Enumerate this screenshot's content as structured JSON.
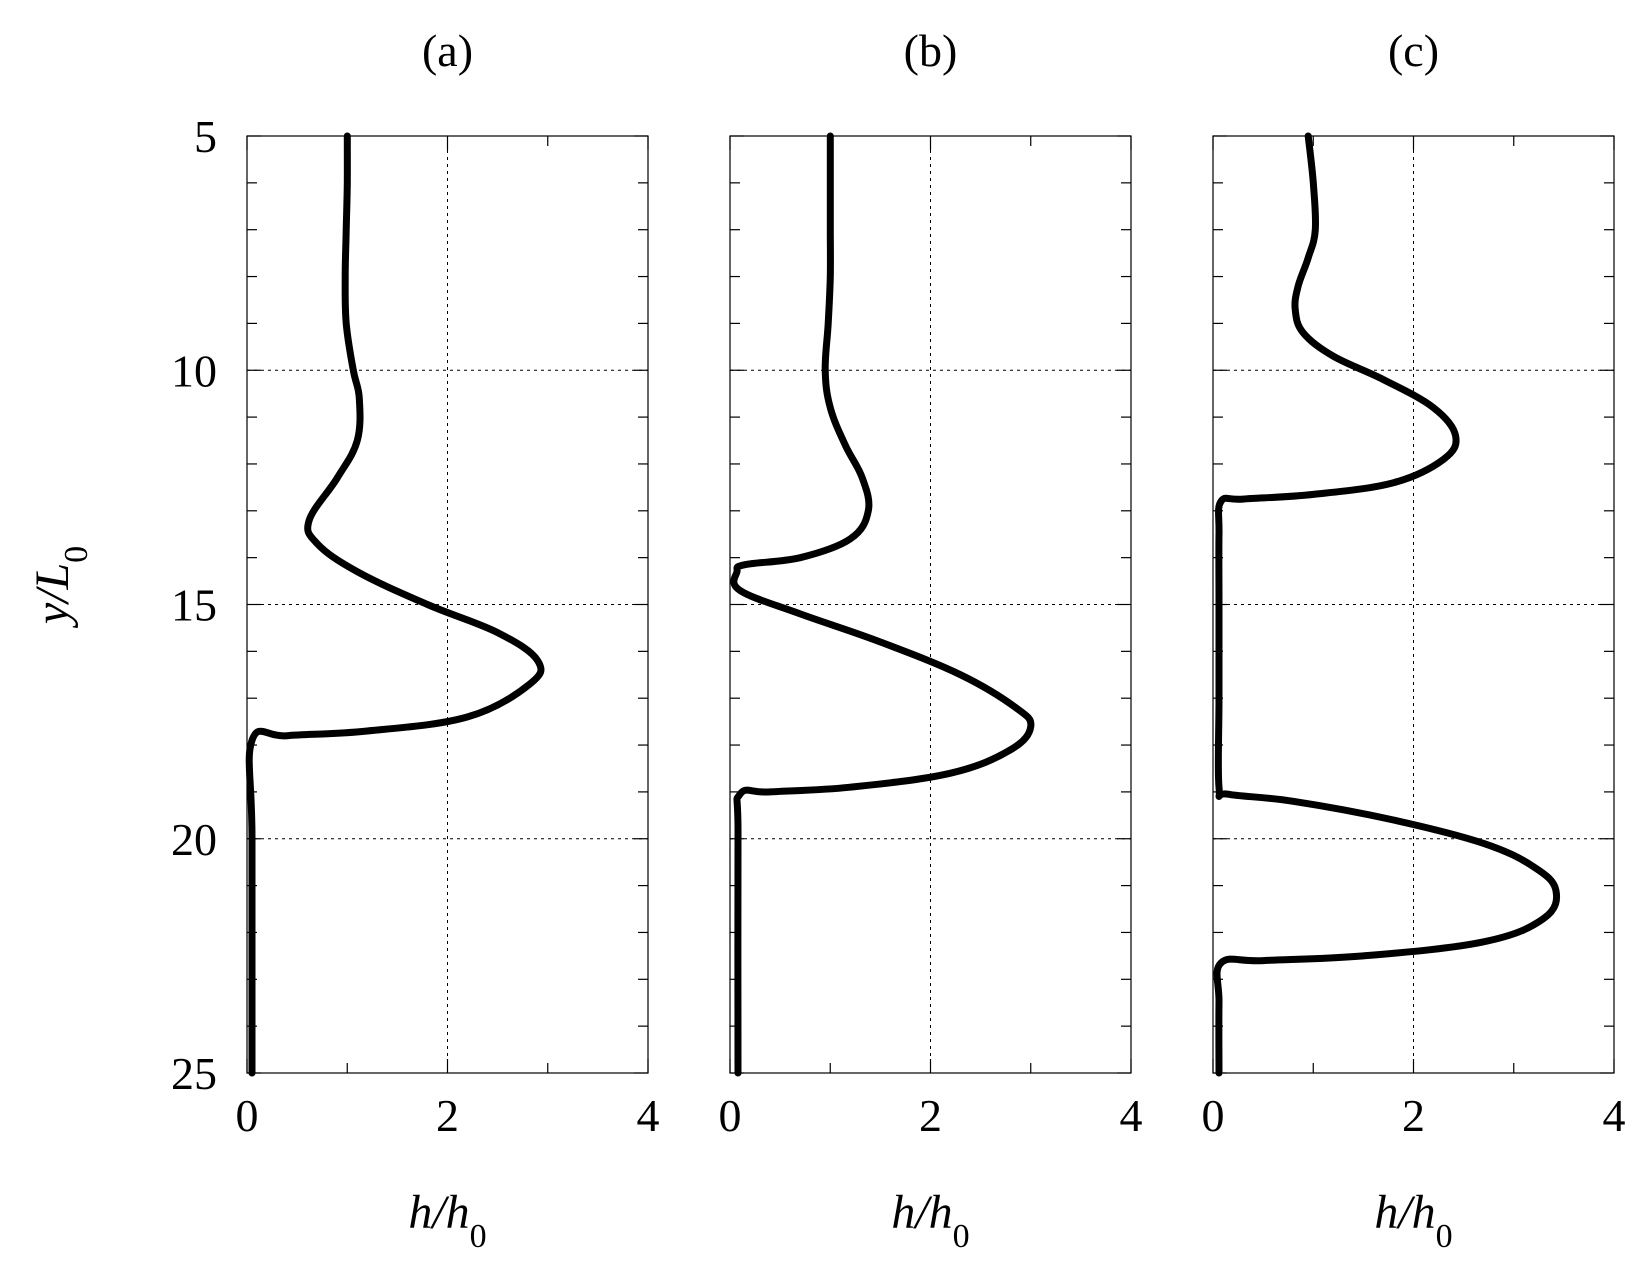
{
  "figure": {
    "y_axis_title_main": "y/L",
    "y_axis_title_sub": "0",
    "x_axis_title_main": "h/h",
    "x_axis_title_sub": "0"
  },
  "chart_data": [
    {
      "type": "line",
      "panel_label": "(a)",
      "xlim": [
        0,
        4
      ],
      "ylim": [
        5,
        25
      ],
      "y_inverted": true,
      "xticks": [
        0,
        2,
        4
      ],
      "yticks": [
        5,
        10,
        15,
        20,
        25
      ],
      "grid": true,
      "series": [
        {
          "points": [
            [
              1.0,
              5
            ],
            [
              1.0,
              6
            ],
            [
              0.99,
              7
            ],
            [
              0.98,
              8
            ],
            [
              0.99,
              9
            ],
            [
              1.06,
              10
            ],
            [
              1.12,
              10.6
            ],
            [
              1.1,
              11.5
            ],
            [
              0.9,
              12.3
            ],
            [
              0.62,
              13.2
            ],
            [
              0.7,
              13.7
            ],
            [
              1.1,
              14.3
            ],
            [
              1.8,
              15.0
            ],
            [
              2.5,
              15.6
            ],
            [
              2.9,
              16.2
            ],
            [
              2.82,
              16.7
            ],
            [
              2.2,
              17.4
            ],
            [
              1.2,
              17.7
            ],
            [
              0.4,
              17.8
            ],
            [
              0.05,
              17.9
            ],
            [
              0.05,
              20
            ],
            [
              0.05,
              25
            ]
          ]
        }
      ]
    },
    {
      "type": "line",
      "panel_label": "(b)",
      "xlim": [
        0,
        4
      ],
      "ylim": [
        5,
        25
      ],
      "y_inverted": true,
      "xticks": [
        0,
        2,
        4
      ],
      "yticks": [
        5,
        10,
        15,
        20,
        25
      ],
      "grid": true,
      "series": [
        {
          "points": [
            [
              1.0,
              5
            ],
            [
              1.0,
              6
            ],
            [
              1.0,
              7
            ],
            [
              1.0,
              8
            ],
            [
              0.98,
              9
            ],
            [
              0.95,
              10
            ],
            [
              1.0,
              10.8
            ],
            [
              1.15,
              11.6
            ],
            [
              1.32,
              12.3
            ],
            [
              1.38,
              13.0
            ],
            [
              1.2,
              13.6
            ],
            [
              0.7,
              14.0
            ],
            [
              0.15,
              14.15
            ],
            [
              0.07,
              14.3
            ],
            [
              0.1,
              14.7
            ],
            [
              0.7,
              15.2
            ],
            [
              1.5,
              15.8
            ],
            [
              2.3,
              16.5
            ],
            [
              2.85,
              17.2
            ],
            [
              3.0,
              17.6
            ],
            [
              2.8,
              18.1
            ],
            [
              2.2,
              18.6
            ],
            [
              1.2,
              18.9
            ],
            [
              0.4,
              19.0
            ],
            [
              0.1,
              19.05
            ],
            [
              0.08,
              20
            ],
            [
              0.08,
              25
            ]
          ]
        }
      ]
    },
    {
      "type": "line",
      "panel_label": "(c)",
      "xlim": [
        0,
        4
      ],
      "ylim": [
        5,
        25
      ],
      "y_inverted": true,
      "xticks": [
        0,
        2,
        4
      ],
      "yticks": [
        5,
        10,
        15,
        20,
        25
      ],
      "grid": true,
      "series": [
        {
          "points": [
            [
              0.95,
              5
            ],
            [
              1.0,
              6
            ],
            [
              1.02,
              7
            ],
            [
              0.95,
              7.6
            ],
            [
              0.85,
              8.2
            ],
            [
              0.82,
              8.7
            ],
            [
              0.9,
              9.2
            ],
            [
              1.2,
              9.7
            ],
            [
              1.7,
              10.2
            ],
            [
              2.2,
              10.8
            ],
            [
              2.42,
              11.4
            ],
            [
              2.3,
              11.9
            ],
            [
              1.8,
              12.4
            ],
            [
              1.0,
              12.65
            ],
            [
              0.3,
              12.75
            ],
            [
              0.08,
              12.8
            ],
            [
              0.06,
              13.5
            ],
            [
              0.06,
              15
            ],
            [
              0.06,
              17
            ],
            [
              0.06,
              18.9
            ],
            [
              0.15,
              19.05
            ],
            [
              0.8,
              19.2
            ],
            [
              1.8,
              19.6
            ],
            [
              2.7,
              20.1
            ],
            [
              3.2,
              20.6
            ],
            [
              3.42,
              21.1
            ],
            [
              3.3,
              21.7
            ],
            [
              2.7,
              22.2
            ],
            [
              1.5,
              22.5
            ],
            [
              0.5,
              22.6
            ],
            [
              0.08,
              22.65
            ],
            [
              0.06,
              23.5
            ],
            [
              0.06,
              25
            ]
          ]
        }
      ]
    }
  ]
}
